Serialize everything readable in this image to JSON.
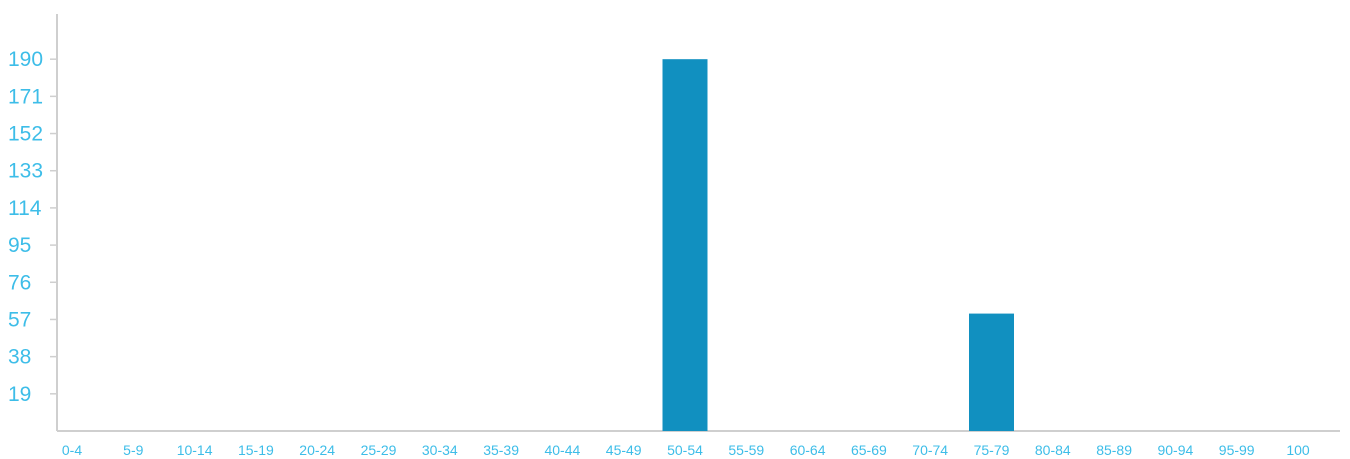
{
  "chart_data": {
    "type": "bar",
    "title": "",
    "xlabel": "",
    "ylabel": "",
    "categories": [
      "0-4",
      "5-9",
      "10-14",
      "15-19",
      "20-24",
      "25-29",
      "30-34",
      "35-39",
      "40-44",
      "45-49",
      "50-54",
      "55-59",
      "60-64",
      "65-69",
      "70-74",
      "75-79",
      "80-84",
      "85-89",
      "90-94",
      "95-99",
      "100"
    ],
    "values": [
      0,
      0,
      0,
      0,
      0,
      0,
      0,
      0,
      0,
      0,
      190,
      0,
      0,
      0,
      0,
      60,
      0,
      0,
      0,
      0,
      0
    ],
    "yticks": [
      19,
      38,
      57,
      76,
      95,
      114,
      133,
      152,
      171,
      190
    ],
    "ylim": [
      0,
      209
    ],
    "grid": false,
    "colors": {
      "bar": "#1190c0",
      "tick_label": "#3dbde8",
      "axis": "#cfcfcf"
    }
  }
}
